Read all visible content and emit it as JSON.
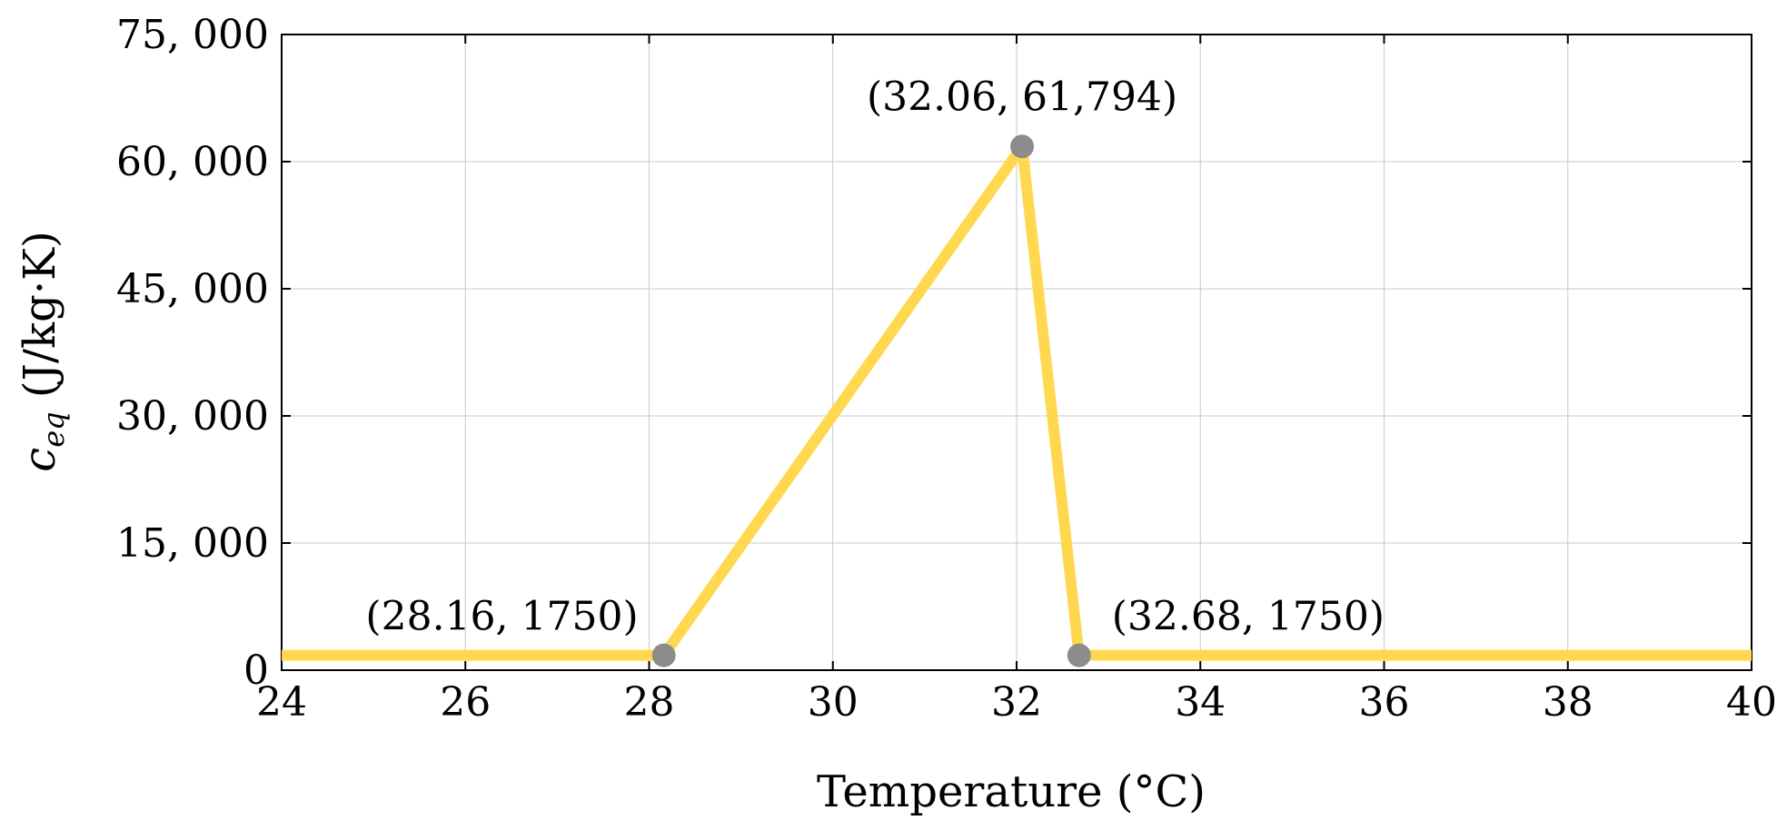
{
  "chart_data": {
    "type": "line",
    "title": "",
    "xlabel": "Temperature (°C)",
    "ylabel_main": "c",
    "ylabel_sub": "eq",
    "ylabel_unit": " (J/kg·K)",
    "xlim": [
      24,
      40
    ],
    "ylim": [
      0,
      75000
    ],
    "x_ticks": [
      24,
      26,
      28,
      30,
      32,
      34,
      36,
      38,
      40
    ],
    "x_tick_labels": [
      "24",
      "26",
      "28",
      "30",
      "32",
      "34",
      "36",
      "38",
      "40"
    ],
    "y_ticks": [
      0,
      15000,
      30000,
      45000,
      60000,
      75000
    ],
    "y_tick_labels": [
      "0",
      "15, 000",
      "30, 000",
      "45, 000",
      "60, 000",
      "75, 000"
    ],
    "grid": true,
    "series": [
      {
        "color": "#FFD84F",
        "x": [
          24,
          28.16,
          32.06,
          32.68,
          40
        ],
        "y": [
          1750,
          1750,
          61794,
          1750,
          1750
        ]
      }
    ],
    "markers": [
      {
        "x": 28.16,
        "y": 1750,
        "label": "(28.16, 1750)",
        "color": "#8c8c8c"
      },
      {
        "x": 32.06,
        "y": 61794,
        "label": "(32.06, 61,794)",
        "color": "#8c8c8c"
      },
      {
        "x": 32.68,
        "y": 1750,
        "label": "(32.68, 1750)",
        "color": "#8c8c8c"
      }
    ]
  }
}
